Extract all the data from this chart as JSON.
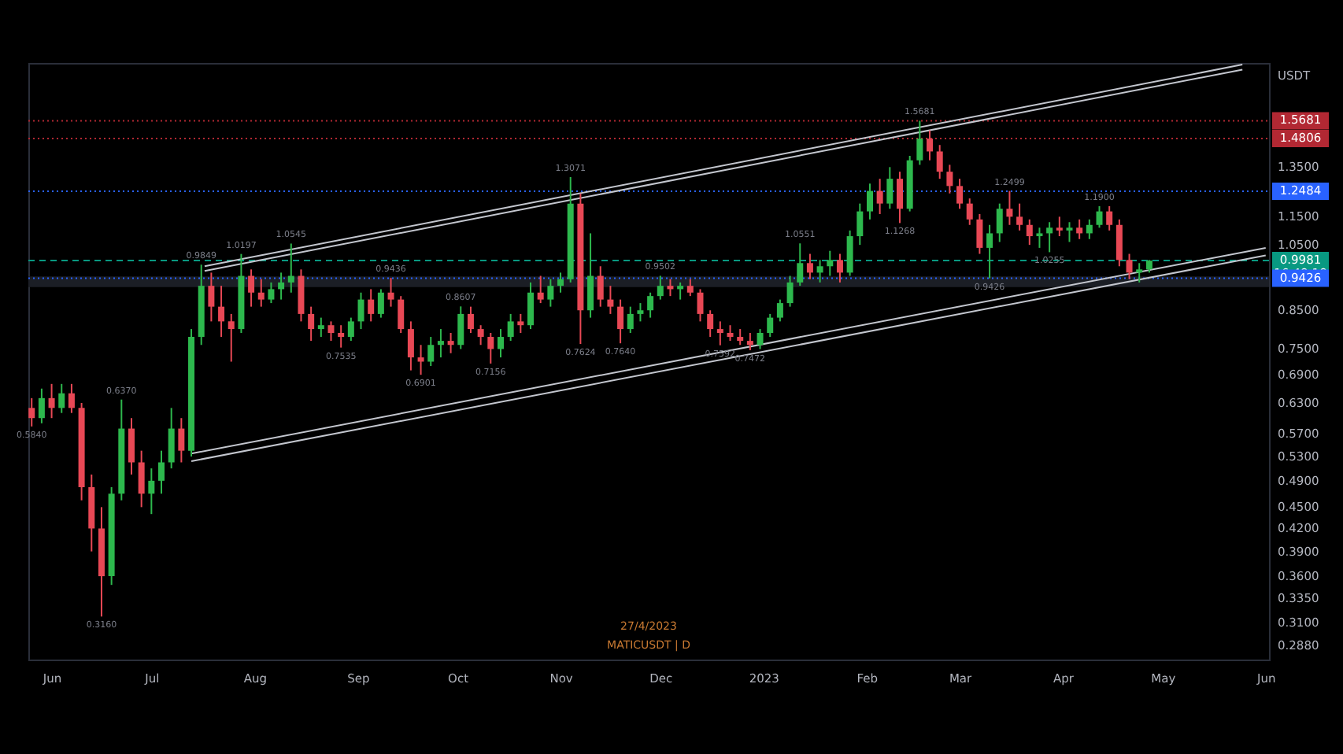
{
  "chart_data": {
    "type": "candlestick",
    "ylabel": "USDT",
    "log": true,
    "x": [
      "2022-05-26",
      "2022-05-29",
      "2022-06-01",
      "2022-06-04",
      "2022-06-07",
      "2022-06-10",
      "2022-06-13",
      "2022-06-16",
      "2022-06-19",
      "2022-06-22",
      "2022-06-25",
      "2022-06-28",
      "2022-07-01",
      "2022-07-04",
      "2022-07-07",
      "2022-07-10",
      "2022-07-13",
      "2022-07-16",
      "2022-07-19",
      "2022-07-22",
      "2022-07-25",
      "2022-07-28",
      "2022-07-31",
      "2022-08-03",
      "2022-08-06",
      "2022-08-09",
      "2022-08-12",
      "2022-08-15",
      "2022-08-18",
      "2022-08-21",
      "2022-08-24",
      "2022-08-27",
      "2022-08-30",
      "2022-09-02",
      "2022-09-05",
      "2022-09-08",
      "2022-09-11",
      "2022-09-14",
      "2022-09-17",
      "2022-09-20",
      "2022-09-23",
      "2022-09-26",
      "2022-09-29",
      "2022-10-02",
      "2022-10-05",
      "2022-10-08",
      "2022-10-11",
      "2022-10-14",
      "2022-10-17",
      "2022-10-20",
      "2022-10-23",
      "2022-10-26",
      "2022-10-29",
      "2022-11-01",
      "2022-11-04",
      "2022-11-07",
      "2022-11-10",
      "2022-11-13",
      "2022-11-16",
      "2022-11-19",
      "2022-11-22",
      "2022-11-25",
      "2022-11-28",
      "2022-12-01",
      "2022-12-04",
      "2022-12-07",
      "2022-12-10",
      "2022-12-13",
      "2022-12-16",
      "2022-12-19",
      "2022-12-22",
      "2022-12-25",
      "2022-12-28",
      "2022-12-31",
      "2023-01-03",
      "2023-01-06",
      "2023-01-09",
      "2023-01-12",
      "2023-01-15",
      "2023-01-18",
      "2023-01-21",
      "2023-01-24",
      "2023-01-27",
      "2023-01-30",
      "2023-02-02",
      "2023-02-05",
      "2023-02-08",
      "2023-02-11",
      "2023-02-14",
      "2023-02-17",
      "2023-02-20",
      "2023-02-23",
      "2023-02-26",
      "2023-03-01",
      "2023-03-04",
      "2023-03-07",
      "2023-03-10",
      "2023-03-13",
      "2023-03-16",
      "2023-03-19",
      "2023-03-22",
      "2023-03-25",
      "2023-03-28",
      "2023-03-31",
      "2023-04-03",
      "2023-04-06",
      "2023-04-09",
      "2023-04-12",
      "2023-04-15",
      "2023-04-18",
      "2023-04-21",
      "2023-04-24",
      "2023-04-27"
    ],
    "ohlc": [
      [
        0.62,
        0.64,
        0.584,
        0.6
      ],
      [
        0.6,
        0.66,
        0.59,
        0.64
      ],
      [
        0.64,
        0.67,
        0.6,
        0.62
      ],
      [
        0.62,
        0.67,
        0.61,
        0.65
      ],
      [
        0.65,
        0.67,
        0.61,
        0.62
      ],
      [
        0.62,
        0.63,
        0.46,
        0.48
      ],
      [
        0.48,
        0.5,
        0.39,
        0.42
      ],
      [
        0.42,
        0.45,
        0.316,
        0.36
      ],
      [
        0.36,
        0.48,
        0.35,
        0.47
      ],
      [
        0.47,
        0.637,
        0.46,
        0.58
      ],
      [
        0.58,
        0.6,
        0.5,
        0.52
      ],
      [
        0.52,
        0.54,
        0.45,
        0.47
      ],
      [
        0.47,
        0.51,
        0.44,
        0.49
      ],
      [
        0.49,
        0.54,
        0.47,
        0.52
      ],
      [
        0.52,
        0.62,
        0.51,
        0.58
      ],
      [
        0.58,
        0.6,
        0.52,
        0.54
      ],
      [
        0.54,
        0.8,
        0.53,
        0.78
      ],
      [
        0.78,
        0.9849,
        0.76,
        0.92
      ],
      [
        0.92,
        0.96,
        0.82,
        0.86
      ],
      [
        0.86,
        0.92,
        0.78,
        0.82
      ],
      [
        0.82,
        0.84,
        0.72,
        0.8
      ],
      [
        0.8,
        1.0197,
        0.79,
        0.95
      ],
      [
        0.95,
        0.97,
        0.86,
        0.9
      ],
      [
        0.9,
        0.94,
        0.86,
        0.88
      ],
      [
        0.88,
        0.93,
        0.87,
        0.91
      ],
      [
        0.91,
        0.96,
        0.88,
        0.93
      ],
      [
        0.93,
        1.0545,
        0.9,
        0.95
      ],
      [
        0.95,
        0.97,
        0.82,
        0.84
      ],
      [
        0.84,
        0.86,
        0.77,
        0.8
      ],
      [
        0.8,
        0.83,
        0.78,
        0.81
      ],
      [
        0.81,
        0.82,
        0.77,
        0.79
      ],
      [
        0.79,
        0.81,
        0.7535,
        0.78
      ],
      [
        0.78,
        0.83,
        0.77,
        0.82
      ],
      [
        0.82,
        0.9,
        0.8,
        0.88
      ],
      [
        0.88,
        0.91,
        0.82,
        0.84
      ],
      [
        0.84,
        0.91,
        0.83,
        0.9
      ],
      [
        0.9,
        0.9436,
        0.86,
        0.88
      ],
      [
        0.88,
        0.89,
        0.79,
        0.8
      ],
      [
        0.8,
        0.82,
        0.7,
        0.73
      ],
      [
        0.73,
        0.76,
        0.6901,
        0.72
      ],
      [
        0.72,
        0.78,
        0.71,
        0.76
      ],
      [
        0.76,
        0.8,
        0.73,
        0.77
      ],
      [
        0.77,
        0.79,
        0.74,
        0.76
      ],
      [
        0.76,
        0.8607,
        0.75,
        0.84
      ],
      [
        0.84,
        0.86,
        0.79,
        0.8
      ],
      [
        0.8,
        0.81,
        0.76,
        0.78
      ],
      [
        0.78,
        0.79,
        0.7156,
        0.75
      ],
      [
        0.75,
        0.8,
        0.73,
        0.78
      ],
      [
        0.78,
        0.84,
        0.77,
        0.82
      ],
      [
        0.82,
        0.84,
        0.79,
        0.81
      ],
      [
        0.81,
        0.93,
        0.8,
        0.9
      ],
      [
        0.9,
        0.95,
        0.87,
        0.88
      ],
      [
        0.88,
        0.94,
        0.86,
        0.92
      ],
      [
        0.92,
        0.96,
        0.9,
        0.94
      ],
      [
        0.94,
        1.3071,
        0.93,
        1.2
      ],
      [
        1.2,
        1.24,
        0.7624,
        0.85
      ],
      [
        0.85,
        1.09,
        0.83,
        0.95
      ],
      [
        0.95,
        0.98,
        0.86,
        0.88
      ],
      [
        0.88,
        0.92,
        0.84,
        0.86
      ],
      [
        0.86,
        0.88,
        0.764,
        0.8
      ],
      [
        0.8,
        0.86,
        0.79,
        0.84
      ],
      [
        0.84,
        0.87,
        0.82,
        0.85
      ],
      [
        0.85,
        0.9,
        0.83,
        0.89
      ],
      [
        0.89,
        0.9502,
        0.88,
        0.92
      ],
      [
        0.92,
        0.94,
        0.89,
        0.91
      ],
      [
        0.91,
        0.93,
        0.88,
        0.92
      ],
      [
        0.92,
        0.94,
        0.89,
        0.9
      ],
      [
        0.9,
        0.91,
        0.82,
        0.84
      ],
      [
        0.84,
        0.85,
        0.78,
        0.8
      ],
      [
        0.8,
        0.82,
        0.7592,
        0.79
      ],
      [
        0.79,
        0.81,
        0.77,
        0.78
      ],
      [
        0.78,
        0.8,
        0.76,
        0.77
      ],
      [
        0.77,
        0.79,
        0.7472,
        0.76
      ],
      [
        0.76,
        0.8,
        0.75,
        0.79
      ],
      [
        0.79,
        0.84,
        0.78,
        0.83
      ],
      [
        0.83,
        0.88,
        0.82,
        0.87
      ],
      [
        0.87,
        0.95,
        0.86,
        0.93
      ],
      [
        0.93,
        1.0551,
        0.92,
        0.99
      ],
      [
        0.99,
        1.02,
        0.94,
        0.96
      ],
      [
        0.96,
        1.0,
        0.93,
        0.98
      ],
      [
        0.98,
        1.03,
        0.95,
        1.0
      ],
      [
        1.0,
        1.02,
        0.93,
        0.96
      ],
      [
        0.96,
        1.1,
        0.95,
        1.08
      ],
      [
        1.08,
        1.2,
        1.05,
        1.17
      ],
      [
        1.17,
        1.28,
        1.14,
        1.25
      ],
      [
        1.25,
        1.3,
        1.16,
        1.2
      ],
      [
        1.2,
        1.35,
        1.18,
        1.3
      ],
      [
        1.3,
        1.33,
        1.1268,
        1.18
      ],
      [
        1.18,
        1.4,
        1.17,
        1.38
      ],
      [
        1.38,
        1.5681,
        1.36,
        1.48
      ],
      [
        1.48,
        1.52,
        1.38,
        1.42
      ],
      [
        1.42,
        1.45,
        1.3,
        1.33
      ],
      [
        1.33,
        1.36,
        1.24,
        1.27
      ],
      [
        1.27,
        1.3,
        1.18,
        1.2
      ],
      [
        1.2,
        1.22,
        1.12,
        1.14
      ],
      [
        1.14,
        1.16,
        1.02,
        1.04
      ],
      [
        1.04,
        1.12,
        0.9426,
        1.09
      ],
      [
        1.09,
        1.2,
        1.06,
        1.18
      ],
      [
        1.18,
        1.2499,
        1.12,
        1.15
      ],
      [
        1.15,
        1.2,
        1.1,
        1.12
      ],
      [
        1.12,
        1.14,
        1.05,
        1.08
      ],
      [
        1.08,
        1.11,
        1.04,
        1.09
      ],
      [
        1.09,
        1.13,
        1.0255,
        1.11
      ],
      [
        1.11,
        1.15,
        1.08,
        1.1
      ],
      [
        1.1,
        1.13,
        1.06,
        1.11
      ],
      [
        1.11,
        1.14,
        1.07,
        1.09
      ],
      [
        1.09,
        1.14,
        1.07,
        1.12
      ],
      [
        1.12,
        1.19,
        1.11,
        1.17
      ],
      [
        1.17,
        1.19,
        1.1,
        1.12
      ],
      [
        1.12,
        1.14,
        0.98,
        1.0
      ],
      [
        1.0,
        1.02,
        0.94,
        0.96
      ],
      [
        0.96,
        0.99,
        0.93,
        0.97
      ],
      [
        0.97,
        1.0,
        0.96,
        0.9981
      ]
    ],
    "colors": [
      "#e84855",
      "#2db84d",
      "#e84855",
      "#2db84d",
      "#e84855",
      "#e84855",
      "#e84855",
      "#e84855",
      "#2db84d",
      "#2db84d",
      "#e84855",
      "#e84855",
      "#2db84d",
      "#2db84d",
      "#2db84d",
      "#e84855",
      "#2db84d",
      "#2db84d",
      "#e84855",
      "#e84855",
      "#e84855",
      "#2db84d",
      "#e84855",
      "#e84855",
      "#2db84d",
      "#2db84d",
      "#2db84d",
      "#e84855",
      "#e84855",
      "#2db84d",
      "#e84855",
      "#e84855",
      "#2db84d",
      "#2db84d",
      "#e84855",
      "#2db84d",
      "#e84855",
      "#e84855",
      "#e84855",
      "#e84855",
      "#2db84d",
      "#2db84d",
      "#e84855",
      "#2db84d",
      "#e84855",
      "#e84855",
      "#e84855",
      "#2db84d",
      "#2db84d",
      "#e84855",
      "#2db84d",
      "#e84855",
      "#2db84d",
      "#2db84d",
      "#2db84d",
      "#e84855",
      "#2db84d",
      "#e84855",
      "#e84855",
      "#e84855",
      "#2db84d",
      "#2db84d",
      "#2db84d",
      "#2db84d",
      "#e84855",
      "#2db84d",
      "#e84855",
      "#e84855",
      "#e84855",
      "#e84855",
      "#e84855",
      "#e84855",
      "#e84855",
      "#2db84d",
      "#2db84d",
      "#2db84d",
      "#2db84d",
      "#2db84d",
      "#e84855",
      "#2db84d",
      "#2db84d",
      "#e84855",
      "#2db84d",
      "#2db84d",
      "#2db84d",
      "#e84855",
      "#2db84d",
      "#e84855",
      "#2db84d",
      "#2db84d",
      "#e84855",
      "#e84855",
      "#e84855",
      "#e84855",
      "#e84855",
      "#e84855",
      "#2db84d",
      "#2db84d",
      "#e84855",
      "#e84855",
      "#e84855",
      "#2db84d",
      "#2db84d",
      "#e84855",
      "#2db84d",
      "#e84855",
      "#2db84d",
      "#2db84d",
      "#e84855",
      "#e84855",
      "#e84855",
      "#2db84d",
      "#2db84d"
    ],
    "series": [
      {
        "type": "line",
        "x": [
          "2022-07-17",
          "2023-05-25"
        ],
        "values": [
          0.98,
          1.88
        ],
        "color": "#c3c6ce"
      },
      {
        "type": "line",
        "x": [
          "2022-07-17",
          "2023-05-25"
        ],
        "values": [
          0.965,
          1.85
        ],
        "color": "#c3c6ce"
      },
      {
        "type": "line",
        "x": [
          "2022-07-13",
          "2023-06-01"
        ],
        "values": [
          0.535,
          1.04
        ],
        "color": "#c3c6ce"
      },
      {
        "type": "line",
        "x": [
          "2022-07-13",
          "2023-06-01"
        ],
        "values": [
          0.522,
          1.015
        ],
        "color": "#c3c6ce"
      }
    ],
    "xlim": [
      "2022-05-25",
      "2023-06-02"
    ],
    "xticks": [
      {
        "value": "2022-06",
        "label": "Jun"
      },
      {
        "value": "2022-07",
        "label": "Jul"
      },
      {
        "value": "2022-08",
        "label": "Aug"
      },
      {
        "value": "2022-09",
        "label": "Sep"
      },
      {
        "value": "2022-10",
        "label": "Oct"
      },
      {
        "value": "2022-11",
        "label": "Nov"
      },
      {
        "value": "2022-12",
        "label": "Dec"
      },
      {
        "value": "2023-01",
        "label": "2023"
      },
      {
        "value": "2023-02",
        "label": "Feb"
      },
      {
        "value": "2023-03",
        "label": "Mar"
      },
      {
        "value": "2023-04",
        "label": "Apr"
      },
      {
        "value": "2023-05",
        "label": "May"
      },
      {
        "value": "2023-06",
        "label": "Jun"
      }
    ],
    "ylim": [
      0.275,
      1.89
    ],
    "yticks": [
      {
        "value": 0.288,
        "label": "0.2880"
      },
      {
        "value": 0.31,
        "label": "0.3100"
      },
      {
        "value": 0.335,
        "label": "0.3350"
      },
      {
        "value": 0.36,
        "label": "0.3600"
      },
      {
        "value": 0.39,
        "label": "0.3900"
      },
      {
        "value": 0.42,
        "label": "0.4200"
      },
      {
        "value": 0.45,
        "label": "0.4500"
      },
      {
        "value": 0.49,
        "label": "0.4900"
      },
      {
        "value": 0.53,
        "label": "0.5300"
      },
      {
        "value": 0.57,
        "label": "0.5700"
      },
      {
        "value": 0.63,
        "label": "0.6300"
      },
      {
        "value": 0.69,
        "label": "0.6900"
      },
      {
        "value": 0.75,
        "label": "0.7500"
      },
      {
        "value": 0.85,
        "label": "0.8500"
      },
      {
        "value": 1.05,
        "label": "1.0500"
      },
      {
        "value": 1.15,
        "label": "1.1500"
      },
      {
        "value": 1.35,
        "label": "1.3500"
      }
    ],
    "ref_lines": [
      {
        "axis": "y",
        "value": 1.5681,
        "label": "1.5681",
        "color": "#b22833",
        "line_style": "dotted"
      },
      {
        "axis": "y",
        "value": 1.4806,
        "label": "1.4806",
        "color": "#b22833",
        "line_style": "dotted"
      },
      {
        "axis": "y",
        "value": 1.2484,
        "label": "1.2484",
        "color": "#2962ff",
        "line_style": "dotted"
      },
      {
        "axis": "y",
        "value": 0.9981,
        "label": "0.9981\n16:48:18",
        "color": "#089981",
        "line_style": "dashed"
      },
      {
        "axis": "y",
        "value": 0.9426,
        "label": "0.9426",
        "color": "#2962ff",
        "line_style": "dotted"
      }
    ],
    "bands": [
      {
        "axis": "y",
        "from": 0.916,
        "to": 0.948,
        "color": "#1b1e25"
      }
    ],
    "annotations": [
      {
        "text": "0.5840",
        "x": "2022-05-26",
        "y": 0.584
      },
      {
        "text": "0.3160",
        "x": "2022-06-16",
        "y": 0.316
      },
      {
        "text": "0.6370",
        "x": "2022-06-22",
        "y": 0.637
      },
      {
        "text": "0.9849",
        "x": "2022-07-16",
        "y": 0.9849
      },
      {
        "text": "1.0197",
        "x": "2022-07-28",
        "y": 1.0197
      },
      {
        "text": "1.0545",
        "x": "2022-08-12",
        "y": 1.0545
      },
      {
        "text": "0.7535",
        "x": "2022-08-27",
        "y": 0.7535
      },
      {
        "text": "0.9436",
        "x": "2022-09-11",
        "y": 0.9436
      },
      {
        "text": "0.6901",
        "x": "2022-09-20",
        "y": 0.6901
      },
      {
        "text": "0.8607",
        "x": "2022-10-02",
        "y": 0.8607
      },
      {
        "text": "0.7156",
        "x": "2022-10-11",
        "y": 0.7156
      },
      {
        "text": "1.3071",
        "x": "2022-11-04",
        "y": 1.3071
      },
      {
        "text": "0.7624",
        "x": "2022-11-07",
        "y": 0.7624
      },
      {
        "text": "0.7640",
        "x": "2022-11-19",
        "y": 0.764
      },
      {
        "text": "0.9502",
        "x": "2022-12-01",
        "y": 0.9502
      },
      {
        "text": "0.7592",
        "x": "2022-12-19",
        "y": 0.7592
      },
      {
        "text": "0.7472",
        "x": "2022-12-28",
        "y": 0.7472
      },
      {
        "text": "1.0551",
        "x": "2023-01-12",
        "y": 1.0551
      },
      {
        "text": "1.1268",
        "x": "2023-02-11",
        "y": 1.1268
      },
      {
        "text": "1.5681",
        "x": "2023-02-17",
        "y": 1.5681
      },
      {
        "text": "0.9426",
        "x": "2023-03-10",
        "y": 0.9426
      },
      {
        "text": "1.2499",
        "x": "2023-03-16",
        "y": 1.2499
      },
      {
        "text": "1.0255",
        "x": "2023-03-28",
        "y": 1.0255
      },
      {
        "text": "1.1900",
        "x": "2023-04-12",
        "y": 1.19
      },
      "27/4/2023",
      "MATICUSDT | D"
    ]
  }
}
